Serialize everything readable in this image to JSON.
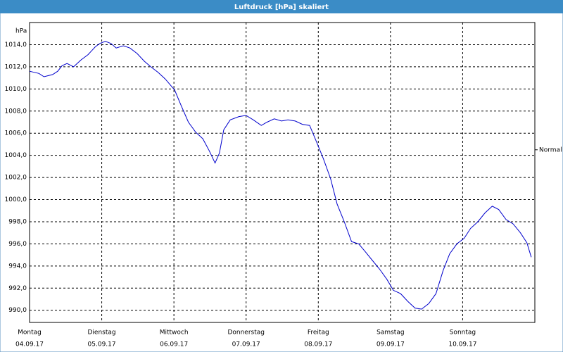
{
  "chart_data": {
    "type": "line",
    "title": "Luftdruck [hPa] skaliert",
    "y_unit": "hPa",
    "x": [
      0,
      0.13,
      0.2,
      0.32,
      0.39,
      0.45,
      0.52,
      0.61,
      0.71,
      0.81,
      0.91,
      0.97,
      1.05,
      1.13,
      1.2,
      1.3,
      1.39,
      1.49,
      1.59,
      1.68,
      1.78,
      1.88,
      2.01,
      2.1,
      2.2,
      2.3,
      2.4,
      2.49,
      2.57,
      2.63,
      2.69,
      2.78,
      2.9,
      3.0,
      3.1,
      3.21,
      3.29,
      3.39,
      3.49,
      3.58,
      3.68,
      3.78,
      3.88,
      3.97,
      4.07,
      4.17,
      4.26,
      4.36,
      4.46,
      4.56,
      4.65,
      4.75,
      4.85,
      4.95,
      5.04,
      5.14,
      5.24,
      5.34,
      5.43,
      5.53,
      5.63,
      5.73,
      5.82,
      5.92,
      6.02,
      6.11,
      6.21,
      6.31,
      6.41,
      6.5,
      6.6,
      6.7,
      6.8,
      6.89,
      6.95
    ],
    "series": [
      {
        "color": "#0000cc",
        "values": [
          1011.6,
          1011.4,
          1011.1,
          1011.3,
          1011.6,
          1012.1,
          1012.3,
          1012.0,
          1012.6,
          1013.1,
          1013.8,
          1014.1,
          1014.3,
          1014.1,
          1013.7,
          1013.9,
          1013.7,
          1013.2,
          1012.5,
          1012.0,
          1011.5,
          1010.9,
          1009.9,
          1008.5,
          1007.0,
          1006.1,
          1005.5,
          1004.4,
          1003.3,
          1004.2,
          1006.3,
          1007.2,
          1007.5,
          1007.6,
          1007.2,
          1006.7,
          1007.0,
          1007.3,
          1007.1,
          1007.2,
          1007.1,
          1006.8,
          1006.7,
          1005.3,
          1003.7,
          1001.9,
          999.6,
          998.0,
          996.2,
          996.0,
          995.3,
          994.5,
          993.7,
          992.8,
          991.8,
          991.5,
          990.8,
          990.2,
          990.1,
          990.6,
          991.5,
          993.6,
          995.1,
          996.0,
          996.5,
          997.4,
          998.0,
          998.8,
          999.4,
          999.1,
          998.2,
          997.8,
          997.0,
          996.1,
          994.8
        ]
      }
    ],
    "xlim": [
      0,
      7
    ],
    "xticks": [
      {
        "value": 0,
        "label": "04.09.17"
      },
      {
        "value": 1,
        "label": "05.09.17"
      },
      {
        "value": 2,
        "label": "06.09.17"
      },
      {
        "value": 3,
        "label": "07.09.17"
      },
      {
        "value": 4,
        "label": "08.09.17"
      },
      {
        "value": 5,
        "label": "09.09.17"
      },
      {
        "value": 6,
        "label": "10.09.17"
      }
    ],
    "xtick_weekdays": [
      "Montag",
      "Dienstag",
      "Mittwoch",
      "Donnerstag",
      "Freitag",
      "Samstag",
      "Sonntag"
    ],
    "ylim": [
      988.9,
      1016
    ],
    "yticks": [
      {
        "value": 990,
        "label": "990,0"
      },
      {
        "value": 992,
        "label": "992,0"
      },
      {
        "value": 994,
        "label": "994,0"
      },
      {
        "value": 996,
        "label": "996,0"
      },
      {
        "value": 998,
        "label": "998,0"
      },
      {
        "value": 1000,
        "label": "1000,0"
      },
      {
        "value": 1002,
        "label": "1002,0"
      },
      {
        "value": 1004,
        "label": "1004,0"
      },
      {
        "value": 1006,
        "label": "1006,0"
      },
      {
        "value": 1008,
        "label": "1008,0"
      },
      {
        "value": 1010,
        "label": "1010,0"
      },
      {
        "value": 1012,
        "label": "1012,0"
      },
      {
        "value": 1014,
        "label": "1014,0"
      }
    ],
    "reference": {
      "label": "Normal",
      "value": 1004.5
    },
    "grid": true
  }
}
